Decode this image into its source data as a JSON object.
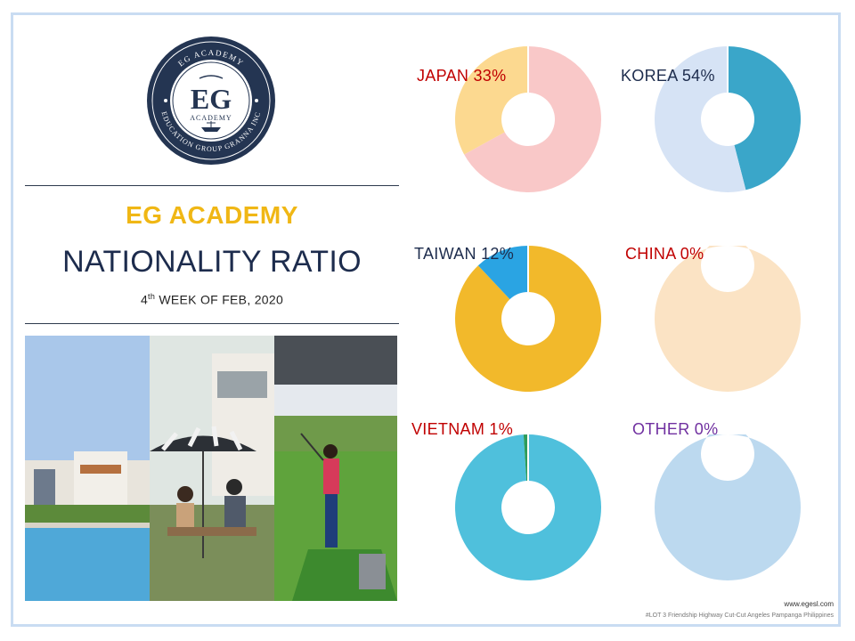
{
  "logo": {
    "ring_text_top": "EG ACADEMY",
    "ring_text_bottom": "EDUCATION GROUP GRANNA INC",
    "center_big": "EG",
    "center_small": "ACADEMY"
  },
  "header": {
    "brand": "EG ACADEMY",
    "title": "NATIONALITY RATIO",
    "week_prefix": "4",
    "week_sup": "th",
    "week_suffix": " WEEK OF FEB, 2020"
  },
  "footer": {
    "url": "www.egesl.com",
    "address": "#LOT 3 Friendship Highway Cut-Cut Angeles Pampanga Philippines"
  },
  "chart_data": {
    "type": "pie",
    "donuts": [
      {
        "name": "JAPAN",
        "value": 33,
        "label": "JAPAN 33%",
        "label_color": "#c00000",
        "slice_color": "#fcd990",
        "rest_color": "#f9c8c8"
      },
      {
        "name": "KOREA",
        "value": 54,
        "label": "KOREA 54%",
        "label_color": "#1d2c4d",
        "slice_color": "#d6e3f5",
        "rest_color": "#3aa6c9"
      },
      {
        "name": "TAIWAN",
        "value": 12,
        "label": "TAIWAN 12%",
        "label_color": "#1d2c4d",
        "slice_color": "#2aa4e3",
        "rest_color": "#f2b92b"
      },
      {
        "name": "CHINA",
        "value": 0,
        "label": "CHINA 0%",
        "label_color": "#c00000",
        "slice_color": "#d62c1a",
        "rest_color": "#fbe3c4"
      },
      {
        "name": "VIETNAM",
        "value": 1,
        "label": "VIETNAM 1%",
        "label_color": "#c00000",
        "slice_color": "#2e9c5a",
        "rest_color": "#4fc0dc"
      },
      {
        "name": "OTHER",
        "value": 0,
        "label": "OTHER 0%",
        "label_color": "#7030a0",
        "slice_color": "#8a3fb3",
        "rest_color": "#bcd9ef"
      }
    ]
  }
}
